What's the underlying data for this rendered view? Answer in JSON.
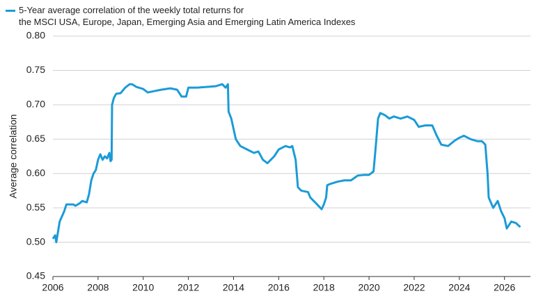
{
  "chart_data": {
    "type": "line",
    "y_label": "Average correlation",
    "xlim": [
      2006,
      2027.15
    ],
    "xticks": [
      2006,
      2008,
      2010,
      2012,
      2014,
      2016,
      2018,
      2020,
      2022,
      2024,
      2026
    ],
    "ylim": [
      0.45,
      0.8
    ],
    "yticks": [
      0.45,
      {
        "value": 0.5,
        "label": "0.50"
      },
      0.55,
      {
        "value": 0.6,
        "label": "0.60"
      },
      0.65,
      {
        "value": 0.7,
        "label": "0.70"
      },
      0.75,
      {
        "value": 0.8,
        "label": "0.80"
      }
    ],
    "grid": true,
    "x": [
      2006.0,
      2006.1,
      2006.15,
      2006.3,
      2006.5,
      2006.6,
      2006.9,
      2007.0,
      2007.2,
      2007.3,
      2007.5,
      2007.6,
      2007.7,
      2007.8,
      2007.9,
      2008.0,
      2008.1,
      2008.2,
      2008.3,
      2008.4,
      2008.5,
      2008.55,
      2008.6,
      2008.62,
      2008.7,
      2008.8,
      2009.0,
      2009.2,
      2009.4,
      2009.5,
      2009.7,
      2010.0,
      2010.2,
      2010.5,
      2010.8,
      2011.2,
      2011.5,
      2011.7,
      2011.9,
      2012.0,
      2012.4,
      2012.8,
      2013.2,
      2013.5,
      2013.65,
      2013.75,
      2013.78,
      2013.9,
      2014.0,
      2014.1,
      2014.3,
      2014.6,
      2014.9,
      2015.1,
      2015.3,
      2015.5,
      2015.8,
      2016.0,
      2016.3,
      2016.5,
      2016.6,
      2016.75,
      2016.85,
      2017.0,
      2017.3,
      2017.4,
      2017.7,
      2017.9,
      2018.0,
      2018.1,
      2018.15,
      2018.3,
      2018.6,
      2018.9,
      2019.2,
      2019.5,
      2019.8,
      2020.0,
      2020.2,
      2020.3,
      2020.4,
      2020.5,
      2020.7,
      2020.9,
      2021.1,
      2021.4,
      2021.7,
      2022.0,
      2022.2,
      2022.5,
      2022.8,
      2023.0,
      2023.2,
      2023.5,
      2023.8,
      2024.0,
      2024.2,
      2024.5,
      2024.8,
      2025.0,
      2025.15,
      2025.25,
      2025.3,
      2025.5,
      2025.7,
      2025.85,
      2026.0,
      2026.1,
      2026.3,
      2026.5,
      2026.7
    ],
    "series": [
      {
        "name": "5-Year average correlation of the weekly total returns for\nthe MSCI USA, Europe, Japan, Emerging Asia and Emerging Latin America Indexes",
        "color": "#1a9bd7",
        "values": [
          0.505,
          0.51,
          0.5,
          0.53,
          0.545,
          0.555,
          0.555,
          0.553,
          0.557,
          0.56,
          0.558,
          0.57,
          0.59,
          0.6,
          0.605,
          0.62,
          0.628,
          0.62,
          0.625,
          0.622,
          0.63,
          0.618,
          0.62,
          0.7,
          0.71,
          0.716,
          0.717,
          0.725,
          0.73,
          0.73,
          0.726,
          0.723,
          0.718,
          0.72,
          0.722,
          0.724,
          0.722,
          0.712,
          0.712,
          0.725,
          0.725,
          0.726,
          0.727,
          0.73,
          0.725,
          0.73,
          0.69,
          0.68,
          0.665,
          0.65,
          0.64,
          0.635,
          0.63,
          0.632,
          0.62,
          0.615,
          0.625,
          0.635,
          0.64,
          0.638,
          0.64,
          0.62,
          0.58,
          0.575,
          0.573,
          0.565,
          0.555,
          0.548,
          0.555,
          0.565,
          0.583,
          0.585,
          0.588,
          0.59,
          0.59,
          0.597,
          0.598,
          0.598,
          0.603,
          0.64,
          0.68,
          0.688,
          0.685,
          0.68,
          0.683,
          0.68,
          0.683,
          0.678,
          0.668,
          0.67,
          0.67,
          0.655,
          0.642,
          0.64,
          0.648,
          0.652,
          0.655,
          0.65,
          0.647,
          0.647,
          0.642,
          0.6,
          0.565,
          0.55,
          0.56,
          0.545,
          0.535,
          0.52,
          0.53,
          0.528,
          0.522
        ]
      }
    ]
  }
}
